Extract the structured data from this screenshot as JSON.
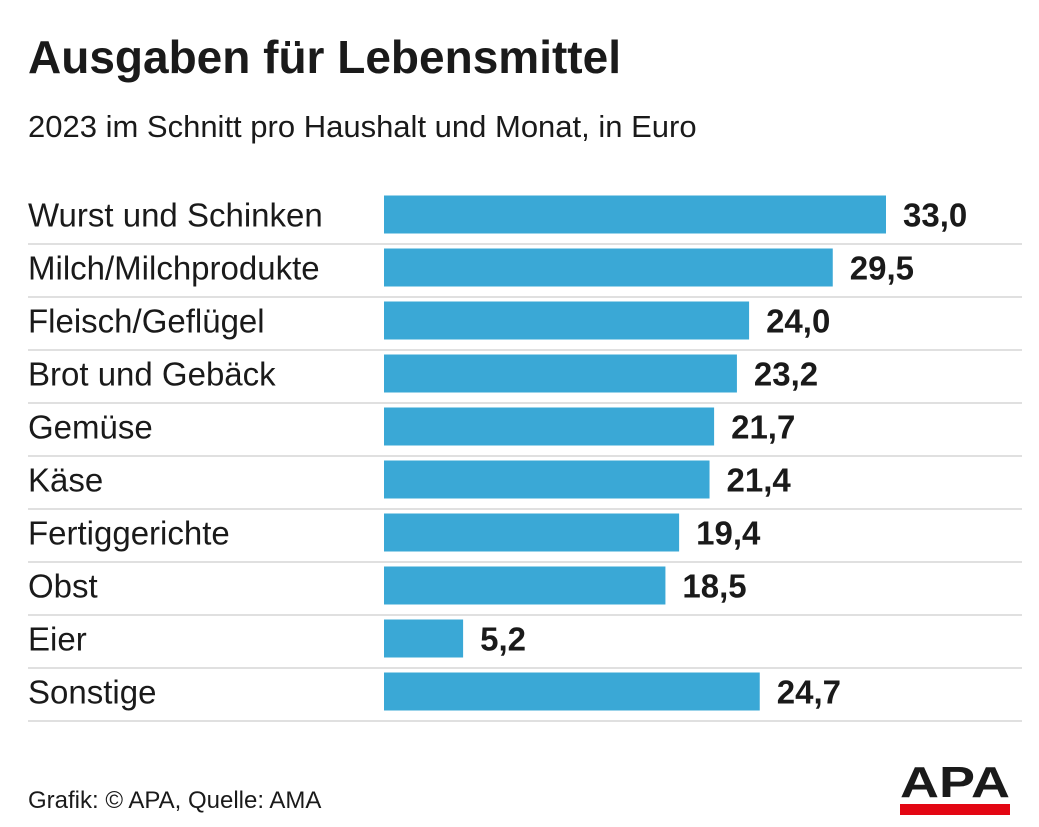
{
  "title": "Ausgaben für Lebensmittel",
  "subtitle": "2023 im Schnitt pro Haushalt und Monat, in Euro",
  "footer": "Grafik: © APA, Quelle: AMA",
  "logo_text": "APA",
  "colors": {
    "bar": "#3aa8d6",
    "separator": "#d6d6d6",
    "text": "#1a1a1a",
    "logo_text": "#1a1a1a",
    "logo_accent": "#e30613"
  },
  "chart_data": {
    "type": "bar",
    "orientation": "horizontal",
    "title": "Ausgaben für Lebensmittel",
    "subtitle": "2023 im Schnitt pro Haushalt und Monat, in Euro",
    "categories": [
      "Wurst und Schinken",
      "Milch/Milchprodukte",
      "Fleisch/Geflügel",
      "Brot und Gebäck",
      "Gemüse",
      "Käse",
      "Fertiggerichte",
      "Obst",
      "Eier",
      "Sonstige"
    ],
    "values": [
      33.0,
      29.5,
      24.0,
      23.2,
      21.7,
      21.4,
      19.4,
      18.5,
      5.2,
      24.7
    ],
    "value_labels": [
      "33,0",
      "29,5",
      "24,0",
      "23,2",
      "21,7",
      "21,4",
      "19,4",
      "18,5",
      "5,2",
      "24,7"
    ],
    "xlabel": "",
    "ylabel": "",
    "xlim": [
      0,
      33.0
    ],
    "grid": false,
    "legend": "none"
  }
}
